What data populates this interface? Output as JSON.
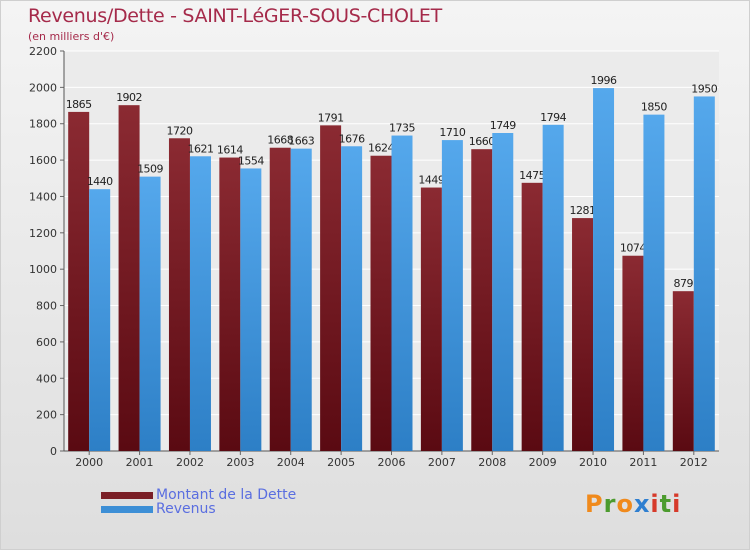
{
  "chart_data": {
    "type": "bar",
    "title": "Revenus/Dette - SAINT-LéGER-SOUS-CHOLET",
    "subtitle": "(en milliers d'€)",
    "categories": [
      "2000",
      "2001",
      "2002",
      "2003",
      "2004",
      "2005",
      "2006",
      "2007",
      "2008",
      "2009",
      "2010",
      "2011",
      "2012"
    ],
    "series": [
      {
        "name": "Montant de la Dette",
        "color": "#7a1f26",
        "values": [
          1865,
          1902,
          1720,
          1614,
          1668,
          1791,
          1624,
          1449,
          1660,
          1475,
          1281,
          1074,
          879
        ],
        "labels": [
          "1865",
          "1902",
          "1720",
          "1614",
          "1668",
          "1791",
          "1624",
          "1449",
          "1660",
          "1475",
          "1281",
          "1074",
          "879"
        ]
      },
      {
        "name": "Revenus",
        "color": "#3d8fd6",
        "values": [
          1440,
          1509,
          1621,
          1554,
          1663,
          1676,
          1735,
          1710,
          1749,
          1794,
          1996,
          1850,
          1950
        ],
        "labels": [
          "1440",
          "1509",
          "1621",
          "1554",
          "1663",
          "1676",
          "1735",
          "1710",
          "1749",
          "1794",
          "1996",
          "1850",
          "1950"
        ]
      }
    ],
    "ylim": [
      0,
      2200
    ],
    "yticks": [
      0,
      200,
      400,
      600,
      800,
      1000,
      1200,
      1400,
      1600,
      1800,
      2000,
      2200
    ],
    "xlabel": "",
    "ylabel": "",
    "grid": true,
    "legend": "bottom-left"
  },
  "legend": {
    "items": [
      {
        "label": "Montant de la Dette",
        "color": "#7a1f26"
      },
      {
        "label": "Revenus",
        "color": "#3d8fd6"
      }
    ]
  },
  "logo": {
    "text": "Proxiti",
    "letter_colors": [
      "#f08a1c",
      "#4c9b2e",
      "#f08a1c",
      "#2f7fd0",
      "#d63a2a",
      "#4c9b2e",
      "#d63a2a"
    ]
  }
}
